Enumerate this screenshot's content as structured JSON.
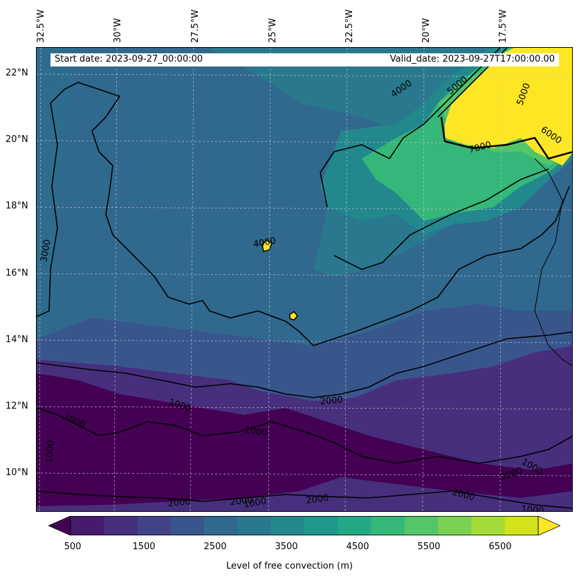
{
  "header": {
    "start_date": "Start date: 2023-09-27_00:00:00",
    "valid_date": "Valid_date: 2023-09-27T17:00:00.00"
  },
  "longitude_labels": [
    "32.5°W",
    "30°W",
    "27.5°W",
    "25°W",
    "22.5°W",
    "20°W",
    "17.5°W"
  ],
  "latitude_labels": [
    "22°N",
    "20°N",
    "18°N",
    "16°N",
    "14°N",
    "12°N",
    "10°N"
  ],
  "contour_labels": [
    "1000",
    "1000",
    "1000",
    "1000",
    "1000",
    "1000",
    "1000",
    "2000",
    "2000",
    "2000",
    "2000",
    "2000",
    "2000",
    "3000",
    "4000",
    "4000",
    "5000",
    "5000",
    "6000",
    "7000"
  ],
  "colorbar": {
    "label": "Level of free convection (m)",
    "ticks": [
      "500",
      "1500",
      "2500",
      "3500",
      "4500",
      "5500",
      "6500"
    ],
    "colors": [
      "#440154",
      "#481a6c",
      "#472f7d",
      "#414487",
      "#39568c",
      "#31688e",
      "#2a788e",
      "#23888e",
      "#1f988b",
      "#22a884",
      "#35b779",
      "#54c568",
      "#7ad151",
      "#a5db36",
      "#d2e21b",
      "#fde725"
    ]
  },
  "field_colors": {
    "lowest": "#440154",
    "low": "#472f7d",
    "mid_low": "#39568c",
    "mid": "#31688e",
    "mid_high": "#2a788e",
    "high": "#23888e",
    "higher": "#35b779",
    "highest": "#fde725"
  }
}
